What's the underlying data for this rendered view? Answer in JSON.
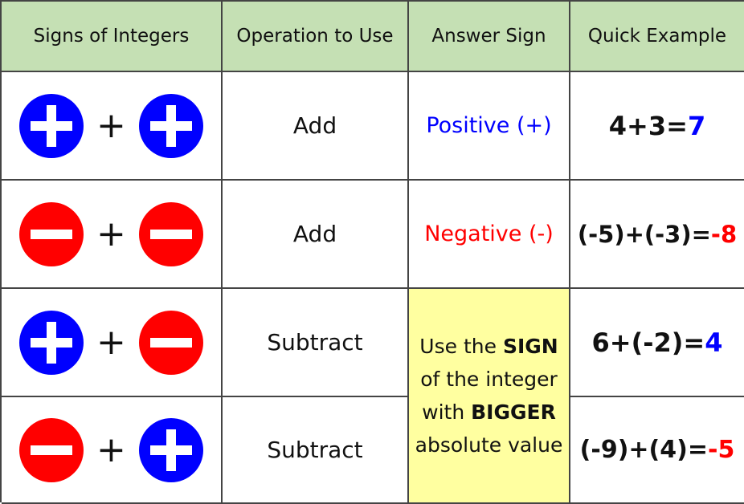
{
  "colors": {
    "header_bg": "#c5e0b4",
    "positive": "#0000ff",
    "negative": "#ff0000",
    "highlight_bg": "#ffffa0"
  },
  "headers": [
    "Signs of Integers",
    "Operation to Use",
    "Answer Sign",
    "Quick Example"
  ],
  "plus_symbol": "+",
  "rows": [
    {
      "signs": [
        "positive",
        "positive"
      ],
      "operation": "Add",
      "answer": "Positive (+)",
      "example": "4+3=",
      "result": "7"
    },
    {
      "signs": [
        "negative",
        "negative"
      ],
      "operation": "Add",
      "answer": "Negative (-)",
      "example": "(-5)+(-3)=",
      "result": "-8"
    },
    {
      "signs": [
        "positive",
        "negative"
      ],
      "operation": "Subtract",
      "example": "6+(-2)=",
      "result": "4"
    },
    {
      "signs": [
        "negative",
        "positive"
      ],
      "operation": "Subtract",
      "example": "(-9)+(4)=",
      "result": "-5"
    }
  ],
  "merged_answer": {
    "l1a": "Use the ",
    "l1b": "SIGN",
    "l2": "of the integer",
    "l3a": "with ",
    "l3b": "BIGGER",
    "l4": "absolute value"
  }
}
